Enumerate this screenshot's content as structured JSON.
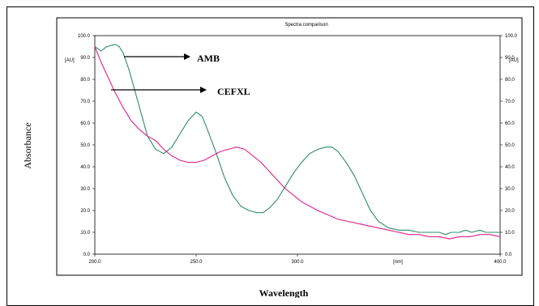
{
  "chart_data": {
    "type": "line",
    "title": "Spectra comparison",
    "xlabel": "Wavelength",
    "ylabel": "Absorbance",
    "x_unit_label": "[nm]",
    "y_unit_label": "[AU]",
    "xlim": [
      200,
      400
    ],
    "ylim": [
      0,
      100
    ],
    "x_ticks": [
      "200.0",
      "250.0",
      "300.0",
      "400.0"
    ],
    "y_ticks": [
      "0.0",
      "10.0",
      "20.0",
      "30.0",
      "40.0",
      "50.0",
      "60.0",
      "70.0",
      "80.0",
      "90.0",
      "100.0"
    ],
    "grid": false,
    "series": [
      {
        "name": "AMB",
        "color": "#2e8b6a",
        "x": [
          200,
          203,
          206,
          210,
          212,
          214,
          217,
          220,
          223,
          226,
          230,
          234,
          238,
          242,
          246,
          250,
          253,
          256,
          260,
          264,
          268,
          272,
          276,
          280,
          283,
          286,
          290,
          294,
          298,
          302,
          306,
          310,
          314,
          317,
          320,
          324,
          328,
          332,
          336,
          340,
          345,
          350,
          355,
          360,
          365,
          370,
          373,
          376,
          380,
          383,
          386,
          390,
          393,
          396,
          400
        ],
        "y": [
          95,
          93,
          95,
          96,
          95,
          92,
          84,
          74,
          64,
          54,
          48,
          46,
          49,
          55,
          61,
          65,
          63,
          56,
          46,
          35,
          27,
          22,
          20,
          19,
          19,
          21,
          25,
          31,
          37,
          42,
          46,
          48,
          49,
          49,
          47,
          42,
          36,
          28,
          20,
          15,
          12,
          11,
          11,
          10,
          10,
          10,
          9,
          10,
          10,
          11,
          10,
          11,
          10,
          10,
          10
        ]
      },
      {
        "name": "CEFXL",
        "color": "#e0208a",
        "x": [
          200,
          203,
          206,
          210,
          214,
          218,
          222,
          226,
          230,
          234,
          238,
          242,
          246,
          250,
          254,
          258,
          262,
          266,
          270,
          274,
          278,
          282,
          286,
          290,
          294,
          298,
          302,
          306,
          310,
          315,
          320,
          325,
          330,
          335,
          340,
          345,
          350,
          355,
          360,
          365,
          370,
          375,
          380,
          385,
          390,
          395,
          400
        ],
        "y": [
          95,
          88,
          82,
          74,
          67,
          61,
          57,
          54,
          52,
          48,
          45,
          43,
          42,
          42,
          43,
          45,
          47,
          48,
          49,
          48,
          45,
          42,
          38,
          34,
          30,
          27,
          24,
          22,
          20,
          18,
          16,
          15,
          14,
          13,
          12,
          11,
          10,
          9,
          9,
          8,
          8,
          7,
          8,
          8,
          9,
          9,
          8
        ]
      }
    ],
    "annotations": [
      {
        "text": "AMB",
        "target_series": "AMB",
        "target_x": 212,
        "target_y": 93
      },
      {
        "text": "CEFXL",
        "target_series": "CEFXL",
        "target_x": 206,
        "target_y": 78
      }
    ]
  }
}
